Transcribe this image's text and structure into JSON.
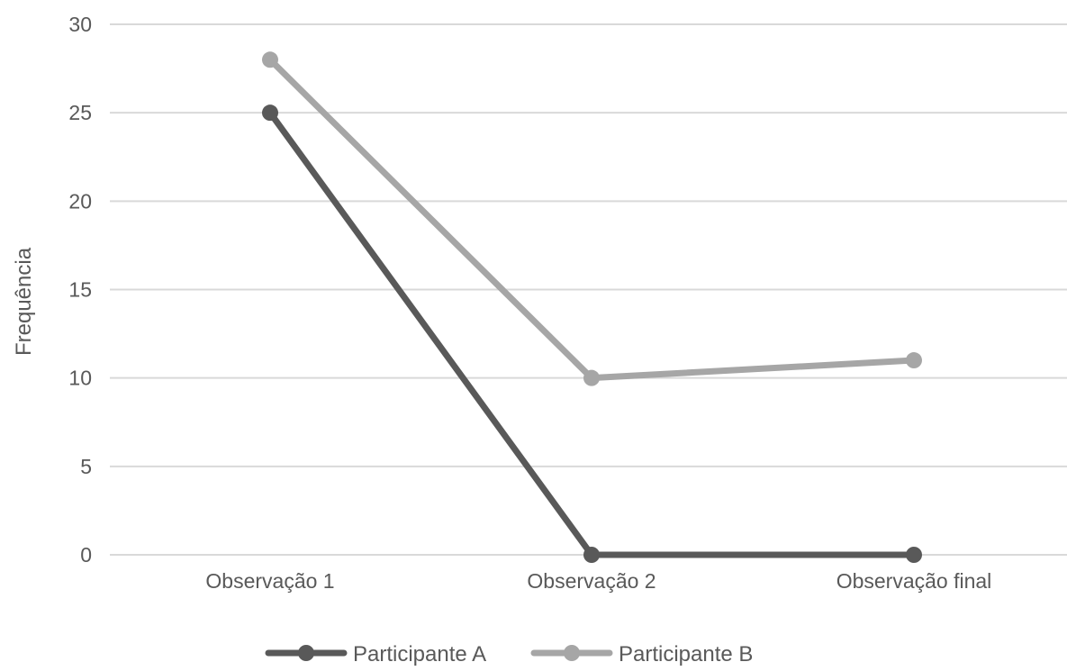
{
  "chart_data": {
    "type": "line",
    "title": "",
    "xlabel": "",
    "ylabel": "Frequência",
    "ylim": [
      0,
      30
    ],
    "yticks": [
      0,
      5,
      10,
      15,
      20,
      25,
      30
    ],
    "categories": [
      "Observação 1",
      "Observação 2",
      "Observação final"
    ],
    "grid": true,
    "legend_position": "bottom",
    "series": [
      {
        "name": "Participante A",
        "values": [
          25,
          0,
          0
        ],
        "color": "#595959"
      },
      {
        "name": "Participante B",
        "values": [
          28,
          10,
          11
        ],
        "color": "#a6a6a6"
      }
    ]
  }
}
